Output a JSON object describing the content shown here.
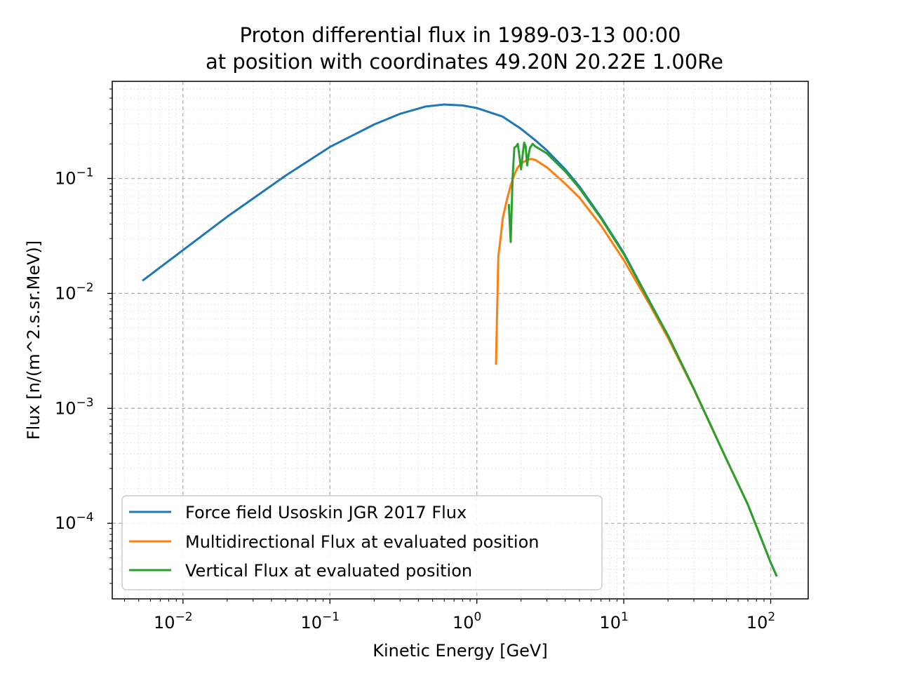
{
  "chart_data": {
    "type": "line",
    "title": "Proton differential flux in 1989-03-13 00:00",
    "subtitle": "at position with coordinates 49.20N 20.22E 1.00Re",
    "xlabel": "Kinetic Energy [GeV]",
    "ylabel": "Flux [n/(m^2.s.sr.MeV)]",
    "xscale": "log",
    "yscale": "log",
    "xlim": [
      0.0033,
      180
    ],
    "ylim": [
      2.2e-05,
      0.7
    ],
    "grid": true,
    "legend_position": "lower-left",
    "x_ticks": [
      {
        "value": 0.01,
        "base": "10",
        "exp": "−2"
      },
      {
        "value": 0.1,
        "base": "10",
        "exp": "−1"
      },
      {
        "value": 1,
        "base": "10",
        "exp": "0"
      },
      {
        "value": 10,
        "base": "10",
        "exp": "1"
      },
      {
        "value": 100,
        "base": "10",
        "exp": "2"
      }
    ],
    "y_ticks": [
      {
        "value": 0.0001,
        "base": "10",
        "exp": "−4"
      },
      {
        "value": 0.001,
        "base": "10",
        "exp": "−3"
      },
      {
        "value": 0.01,
        "base": "10",
        "exp": "−2"
      },
      {
        "value": 0.1,
        "base": "10",
        "exp": "−1"
      }
    ],
    "series": [
      {
        "name": "Force field Usoskin JGR 2017 Flux",
        "color": "#1f77b4",
        "x": [
          0.0053,
          0.01,
          0.02,
          0.05,
          0.1,
          0.2,
          0.3,
          0.45,
          0.6,
          0.8,
          1.0,
          1.5,
          2.0,
          2.5,
          3.0,
          4.0,
          5.0,
          7.0,
          10,
          15,
          20,
          30,
          50,
          70,
          100,
          110
        ],
        "y": [
          0.0129,
          0.0238,
          0.0465,
          0.106,
          0.188,
          0.295,
          0.365,
          0.423,
          0.44,
          0.432,
          0.41,
          0.345,
          0.27,
          0.215,
          0.175,
          0.12,
          0.085,
          0.046,
          0.0225,
          0.0085,
          0.0043,
          0.00148,
          0.00036,
          0.000145,
          4.55e-05,
          3.45e-05
        ]
      },
      {
        "name": "Multidirectional Flux at evaluated position",
        "color": "#ff7f0e",
        "x": [
          1.35,
          1.4,
          1.45,
          1.5,
          1.6,
          1.7,
          1.8,
          1.9,
          2.0,
          2.1,
          2.2,
          2.35,
          2.5,
          3.0,
          4.0,
          5.0,
          7.0,
          10,
          15,
          20,
          30,
          50,
          70,
          100
        ],
        "y": [
          0.0024,
          0.021,
          0.03,
          0.045,
          0.065,
          0.087,
          0.108,
          0.125,
          0.135,
          0.14,
          0.145,
          0.148,
          0.145,
          0.125,
          0.09,
          0.068,
          0.039,
          0.0195,
          0.008,
          0.0041,
          0.00146,
          0.00036,
          0.000145,
          4.55e-05
        ]
      },
      {
        "name": "Vertical Flux at evaluated position",
        "color": "#2ca02c",
        "x": [
          1.65,
          1.7,
          1.75,
          1.8,
          1.85,
          1.9,
          1.95,
          2.0,
          2.05,
          2.1,
          2.15,
          2.2,
          2.25,
          2.3,
          2.4,
          2.5,
          3.0,
          4.0,
          5.0,
          7.0,
          10,
          15,
          20,
          30,
          50,
          70,
          100,
          110
        ],
        "y": [
          0.06,
          0.028,
          0.1,
          0.185,
          0.19,
          0.2,
          0.155,
          0.12,
          0.16,
          0.205,
          0.19,
          0.13,
          0.16,
          0.185,
          0.2,
          0.19,
          0.165,
          0.115,
          0.082,
          0.045,
          0.022,
          0.0084,
          0.0043,
          0.00148,
          0.00036,
          0.000145,
          4.55e-05,
          3.45e-05
        ]
      }
    ]
  }
}
